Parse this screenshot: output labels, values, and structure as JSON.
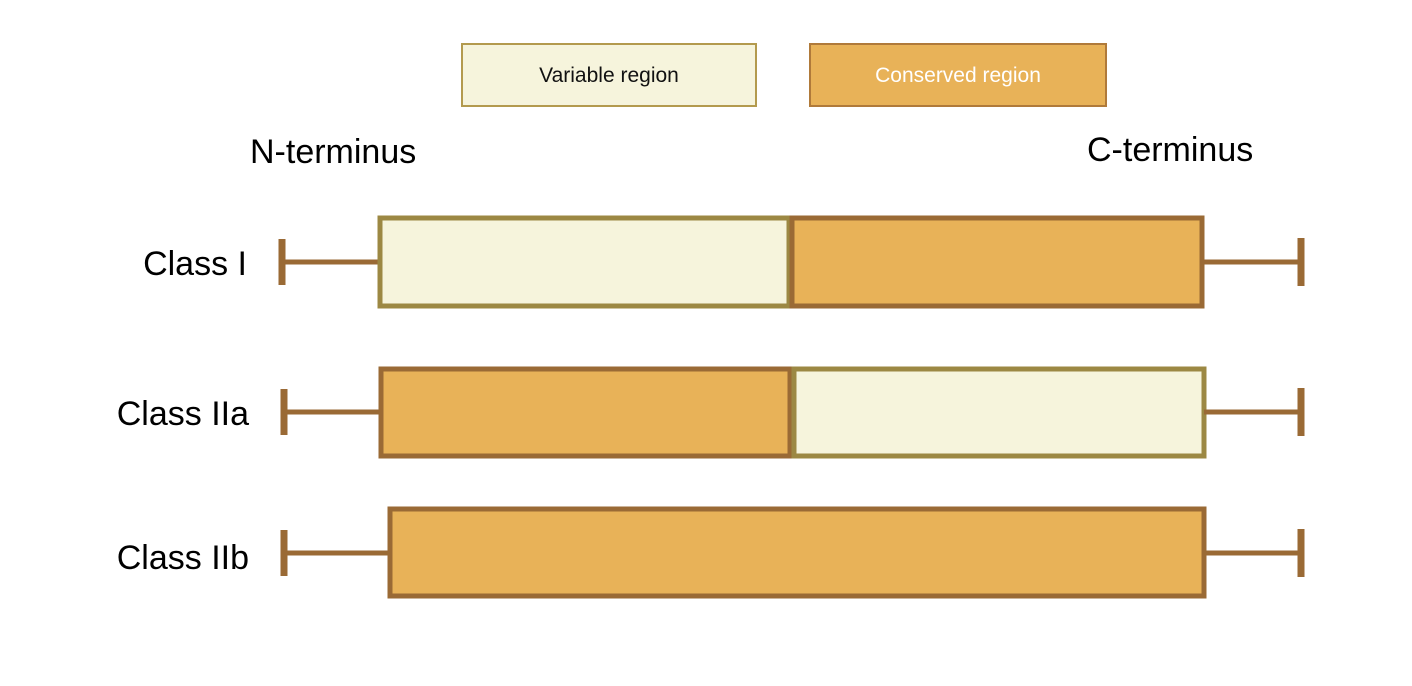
{
  "legend": {
    "variable_label": "Variable region",
    "conserved_label": "Conserved region"
  },
  "termini": {
    "n_label": "N-terminus",
    "c_label": "C-terminus"
  },
  "classes": [
    {
      "label": "Class I",
      "segments": [
        "variable",
        "conserved"
      ]
    },
    {
      "label": "Class IIa",
      "segments": [
        "conserved",
        "variable"
      ]
    },
    {
      "label": "Class IIb",
      "segments": [
        "conserved"
      ]
    }
  ],
  "colors": {
    "variable_fill": "#f6f4dc",
    "variable_border": "#9c8843",
    "conserved_fill": "#e8b258",
    "conserved_border": "#9a6a35",
    "line": "#9a6a35",
    "legend_variable_text": "#111111",
    "legend_conserved_text": "#ffffff"
  }
}
